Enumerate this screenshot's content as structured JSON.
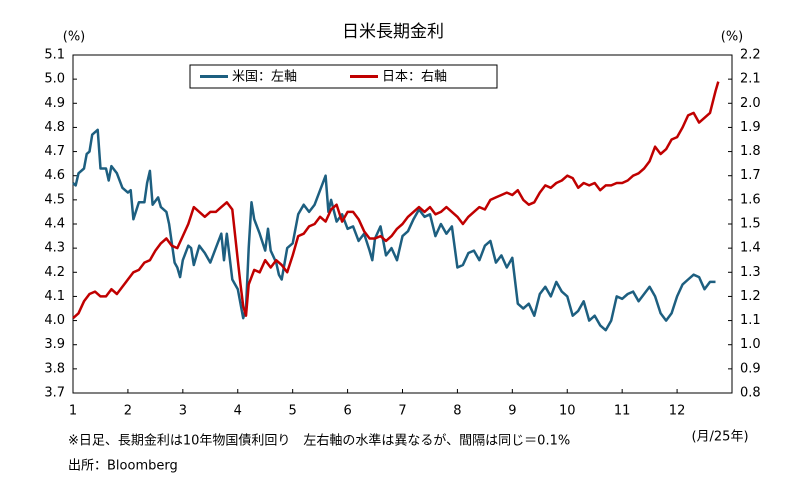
{
  "chart_data": {
    "type": "line",
    "title": "日米長期金利",
    "y_label": "(%)",
    "y2_label": "(%)",
    "x_label": "(月/25年)",
    "note": "※日足、長期金利は10年物国債利回り　左右軸の水準は異なるが、間隔は同じ＝0.1%",
    "source": "出所：Bloomberg",
    "legend": "upper center",
    "grid": false,
    "xlim": [
      1,
      13
    ],
    "xticks": [
      1,
      2,
      3,
      4,
      5,
      6,
      7,
      8,
      9,
      10,
      11,
      12
    ],
    "ylim": [
      3.7,
      5.1
    ],
    "yticks": [
      3.7,
      3.8,
      3.9,
      {
        "value": 4,
        "label": "4.0"
      },
      4.1,
      4.2,
      4.3,
      4.4,
      4.5,
      4.6,
      4.7,
      4.8,
      4.9,
      {
        "value": 5,
        "label": "5.0"
      },
      5.1
    ],
    "y2lim": [
      0.8,
      2.2
    ],
    "y2ticks": [
      0.8,
      0.9,
      {
        "value": 1,
        "label": "1.0"
      },
      1.1,
      1.2,
      1.3,
      1.4,
      1.5,
      1.6,
      1.7,
      1.8,
      1.9,
      {
        "value": 2,
        "label": "2.0"
      },
      2.1,
      2.2
    ],
    "series": [
      {
        "name": "米国：左軸",
        "color": "#1d5f80",
        "axis": "y",
        "x": [
          1.0,
          1.05,
          1.1,
          1.2,
          1.25,
          1.3,
          1.35,
          1.45,
          1.5,
          1.6,
          1.65,
          1.7,
          1.8,
          1.9,
          2.0,
          2.05,
          2.1,
          2.2,
          2.3,
          2.35,
          2.4,
          2.45,
          2.55,
          2.6,
          2.7,
          2.75,
          2.85,
          2.9,
          2.95,
          3.0,
          3.1,
          3.15,
          3.2,
          3.3,
          3.4,
          3.5,
          3.6,
          3.7,
          3.75,
          3.8,
          3.9,
          4.0,
          4.1,
          4.15,
          4.2,
          4.25,
          4.3,
          4.4,
          4.5,
          4.55,
          4.6,
          4.7,
          4.75,
          4.8,
          4.9,
          5.0,
          5.1,
          5.2,
          5.3,
          5.4,
          5.5,
          5.6,
          5.65,
          5.7,
          5.8,
          5.9,
          6.0,
          6.1,
          6.2,
          6.3,
          6.4,
          6.45,
          6.5,
          6.6,
          6.7,
          6.8,
          6.9,
          7.0,
          7.1,
          7.2,
          7.3,
          7.4,
          7.5,
          7.6,
          7.7,
          7.8,
          7.9,
          8.0,
          8.1,
          8.2,
          8.3,
          8.4,
          8.5,
          8.6,
          8.7,
          8.8,
          8.9,
          9.0,
          9.1,
          9.2,
          9.3,
          9.4,
          9.5,
          9.6,
          9.7,
          9.8,
          9.9,
          10.0,
          10.1,
          10.2,
          10.3,
          10.4,
          10.5,
          10.6,
          10.7,
          10.8,
          10.9,
          11.0,
          11.1,
          11.2,
          11.3,
          11.4,
          11.5,
          11.6,
          11.7,
          11.8,
          11.9,
          12.0,
          12.1,
          12.2,
          12.3,
          12.4,
          12.5,
          12.6,
          12.7
        ],
        "values": [
          4.57,
          4.56,
          4.61,
          4.63,
          4.69,
          4.7,
          4.77,
          4.79,
          4.63,
          4.63,
          4.58,
          4.64,
          4.61,
          4.55,
          4.53,
          4.54,
          4.42,
          4.49,
          4.49,
          4.57,
          4.62,
          4.48,
          4.51,
          4.47,
          4.45,
          4.4,
          4.24,
          4.22,
          4.18,
          4.25,
          4.31,
          4.3,
          4.23,
          4.31,
          4.28,
          4.24,
          4.3,
          4.36,
          4.25,
          4.36,
          4.17,
          4.13,
          4.01,
          4.05,
          4.3,
          4.49,
          4.42,
          4.36,
          4.29,
          4.38,
          4.29,
          4.24,
          4.19,
          4.17,
          4.3,
          4.32,
          4.44,
          4.48,
          4.45,
          4.48,
          4.54,
          4.6,
          4.45,
          4.5,
          4.41,
          4.44,
          4.38,
          4.39,
          4.33,
          4.36,
          4.29,
          4.25,
          4.34,
          4.39,
          4.27,
          4.3,
          4.25,
          4.35,
          4.37,
          4.42,
          4.46,
          4.43,
          4.44,
          4.35,
          4.4,
          4.36,
          4.39,
          4.22,
          4.23,
          4.28,
          4.29,
          4.25,
          4.31,
          4.33,
          4.24,
          4.27,
          4.22,
          4.26,
          4.07,
          4.05,
          4.07,
          4.02,
          4.11,
          4.14,
          4.1,
          4.16,
          4.12,
          4.1,
          4.02,
          4.04,
          4.08,
          4.0,
          4.02,
          3.98,
          3.96,
          4.0,
          4.1,
          4.09,
          4.11,
          4.12,
          4.08,
          4.11,
          4.14,
          4.1,
          4.03,
          4.0,
          4.03,
          4.1,
          4.15,
          4.17,
          4.19,
          4.18,
          4.13,
          4.16,
          4.16
        ]
      },
      {
        "name": "日本：右軸",
        "color": "#c00000",
        "axis": "y2",
        "x": [
          1.0,
          1.1,
          1.2,
          1.3,
          1.4,
          1.5,
          1.6,
          1.7,
          1.8,
          1.9,
          2.0,
          2.1,
          2.2,
          2.3,
          2.4,
          2.5,
          2.6,
          2.7,
          2.8,
          2.9,
          3.0,
          3.1,
          3.2,
          3.3,
          3.4,
          3.5,
          3.6,
          3.7,
          3.8,
          3.9,
          4.0,
          4.05,
          4.1,
          4.15,
          4.2,
          4.3,
          4.4,
          4.5,
          4.6,
          4.7,
          4.8,
          4.9,
          5.0,
          5.1,
          5.2,
          5.3,
          5.4,
          5.5,
          5.6,
          5.7,
          5.8,
          5.9,
          6.0,
          6.1,
          6.2,
          6.3,
          6.4,
          6.5,
          6.6,
          6.7,
          6.8,
          6.9,
          7.0,
          7.1,
          7.2,
          7.3,
          7.4,
          7.5,
          7.6,
          7.7,
          7.8,
          7.9,
          8.0,
          8.1,
          8.2,
          8.3,
          8.4,
          8.5,
          8.6,
          8.7,
          8.8,
          8.9,
          9.0,
          9.1,
          9.2,
          9.3,
          9.4,
          9.5,
          9.6,
          9.7,
          9.8,
          9.9,
          10.0,
          10.1,
          10.2,
          10.3,
          10.4,
          10.5,
          10.6,
          10.7,
          10.8,
          10.9,
          11.0,
          11.1,
          11.2,
          11.3,
          11.4,
          11.5,
          11.6,
          11.7,
          11.8,
          11.9,
          12.0,
          12.1,
          12.2,
          12.3,
          12.4,
          12.5,
          12.6,
          12.7,
          12.75
        ],
        "values": [
          1.11,
          1.13,
          1.18,
          1.21,
          1.22,
          1.2,
          1.2,
          1.23,
          1.21,
          1.24,
          1.27,
          1.3,
          1.31,
          1.34,
          1.35,
          1.39,
          1.42,
          1.44,
          1.41,
          1.4,
          1.45,
          1.5,
          1.57,
          1.55,
          1.53,
          1.55,
          1.55,
          1.57,
          1.59,
          1.56,
          1.35,
          1.25,
          1.16,
          1.12,
          1.25,
          1.31,
          1.3,
          1.35,
          1.32,
          1.35,
          1.33,
          1.3,
          1.37,
          1.45,
          1.46,
          1.49,
          1.5,
          1.53,
          1.51,
          1.56,
          1.58,
          1.51,
          1.55,
          1.55,
          1.52,
          1.47,
          1.44,
          1.44,
          1.45,
          1.43,
          1.45,
          1.48,
          1.5,
          1.53,
          1.55,
          1.57,
          1.55,
          1.57,
          1.54,
          1.55,
          1.57,
          1.55,
          1.53,
          1.5,
          1.53,
          1.55,
          1.57,
          1.56,
          1.6,
          1.61,
          1.62,
          1.63,
          1.62,
          1.64,
          1.6,
          1.58,
          1.59,
          1.63,
          1.66,
          1.65,
          1.67,
          1.68,
          1.7,
          1.69,
          1.65,
          1.67,
          1.66,
          1.67,
          1.64,
          1.66,
          1.66,
          1.67,
          1.67,
          1.68,
          1.7,
          1.71,
          1.73,
          1.76,
          1.82,
          1.79,
          1.81,
          1.85,
          1.86,
          1.9,
          1.95,
          1.96,
          1.92,
          1.94,
          1.96,
          2.05,
          2.09
        ]
      }
    ]
  }
}
